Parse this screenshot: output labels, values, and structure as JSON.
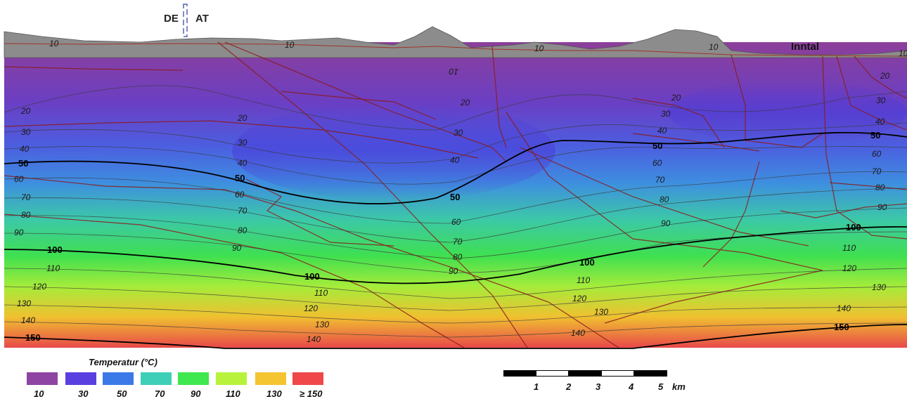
{
  "labels": {
    "country_de": "DE",
    "country_at": "AT",
    "valley": "Inntal"
  },
  "legend": {
    "title": "Temperatur (°C)",
    "entries": [
      {
        "label": "10",
        "color": "#8e44a2"
      },
      {
        "label": "30",
        "color": "#5a3fe0"
      },
      {
        "label": "50",
        "color": "#3b78e8"
      },
      {
        "label": "70",
        "color": "#3fcfb8"
      },
      {
        "label": "90",
        "color": "#3ee84e"
      },
      {
        "label": "110",
        "color": "#b8f23c"
      },
      {
        "label": "130",
        "color": "#f5c431"
      },
      {
        "label": "≥ 150",
        "color": "#f0474a"
      }
    ]
  },
  "scale_bar": {
    "ticks": [
      "1",
      "2",
      "3",
      "4",
      "5"
    ],
    "unit": "km"
  },
  "isotherm_labels": {
    "t10": "10",
    "t20": "20",
    "t30": "30",
    "t40": "40",
    "t50": "50",
    "t60": "60",
    "t70": "70",
    "t80": "80",
    "t90": "90",
    "t100": "100",
    "t110": "110",
    "t120": "120",
    "t130": "130",
    "t140": "140",
    "t150": "150"
  },
  "colors": {
    "terrain": "#8c8c8c",
    "fault_lines": "#8b1a1a",
    "isotherm_thin": "#3a3a3a",
    "isotherm_bold": "#000000"
  }
}
